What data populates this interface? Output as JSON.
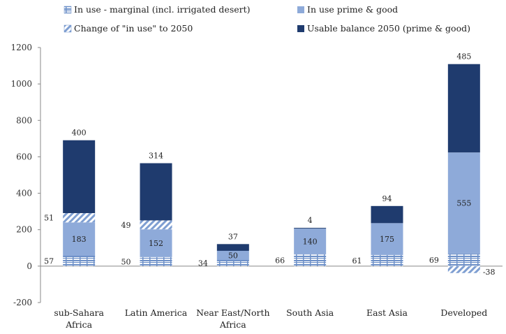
{
  "chart_data": {
    "type": "bar",
    "stacked": true,
    "title": "",
    "xlabel": "",
    "ylabel": "",
    "ylim": [
      -200,
      1200
    ],
    "yticks": [
      -200,
      0,
      200,
      400,
      600,
      800,
      1000,
      1200
    ],
    "grid": false,
    "legend_position": "top",
    "categories": [
      "sub-Sahara Africa",
      "Latin America",
      "Near East/North Africa",
      "South Asia",
      "East Asia",
      "Developed"
    ],
    "series": [
      {
        "name": "In use - marginal (incl. irrigated desert)",
        "key": "marginal",
        "pattern": "bricks",
        "color": "#9ab5d8",
        "values": [
          57,
          50,
          34,
          66,
          61,
          69
        ]
      },
      {
        "name": "In use prime & good",
        "key": "prime",
        "pattern": "solid",
        "color": "#8eaad9",
        "values": [
          183,
          152,
          50,
          140,
          175,
          555
        ]
      },
      {
        "name": "Change of \"in use\" to 2050",
        "key": "change",
        "pattern": "diagonal",
        "color": "#8eaad9",
        "values": [
          51,
          49,
          0,
          0,
          0,
          -38
        ]
      },
      {
        "name": "Usable balance 2050 (prime & good)",
        "key": "balance",
        "pattern": "solid",
        "color": "#1f3b6e",
        "values": [
          400,
          314,
          37,
          4,
          94,
          485
        ]
      }
    ],
    "data_labels": {
      "marginal": [
        "57",
        "50",
        "34",
        "66",
        "61",
        "69"
      ],
      "prime": [
        "183",
        "152",
        "50",
        "140",
        "175",
        "555"
      ],
      "change": [
        "51",
        "49",
        "",
        "",
        "",
        "-38"
      ],
      "balance": [
        "400",
        "314",
        "37",
        "4",
        "94",
        "485"
      ]
    }
  }
}
